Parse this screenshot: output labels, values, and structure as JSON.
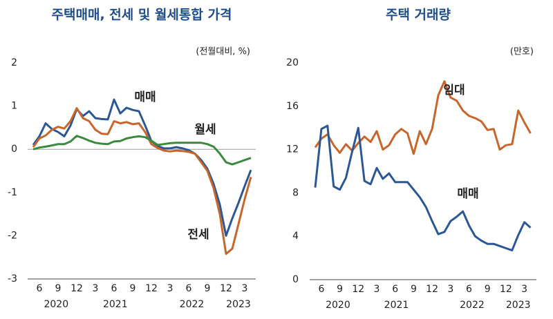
{
  "chart_data": [
    {
      "type": "line",
      "title": "주택매매, 전세 및 월세통합 가격",
      "y_label": "(전월대비, %)",
      "categories": [
        null,
        "6",
        null,
        null,
        "9",
        null,
        null,
        "12",
        null,
        null,
        "3",
        null,
        null,
        "6",
        null,
        null,
        "9",
        null,
        null,
        "12",
        null,
        null,
        "3",
        null,
        null,
        "6",
        null,
        null,
        "9",
        null,
        null,
        "12",
        null,
        null,
        "3",
        null
      ],
      "year_labels": [
        "2020",
        "2021",
        "2022",
        "2023"
      ],
      "ylim": [
        -3,
        2
      ],
      "yticks": [
        2,
        1,
        0,
        -1,
        -2,
        -3
      ],
      "zero_line": true,
      "series": [
        {
          "name": "매매",
          "color": "#2b5797",
          "values": [
            0.1,
            0.3,
            0.6,
            0.47,
            0.4,
            0.3,
            0.55,
            0.93,
            0.77,
            0.88,
            0.72,
            0.7,
            0.69,
            1.15,
            0.83,
            0.96,
            0.91,
            0.88,
            0.55,
            0.19,
            0.08,
            0.02,
            0.02,
            0.05,
            0.02,
            -0.02,
            -0.1,
            -0.25,
            -0.45,
            -0.8,
            -1.28,
            -2.0,
            -1.6,
            -1.24,
            -0.85,
            -0.48
          ]
        },
        {
          "name": "전세",
          "color": "#c8652a",
          "values": [
            0.05,
            0.25,
            0.32,
            0.45,
            0.52,
            0.48,
            0.65,
            0.95,
            0.72,
            0.65,
            0.45,
            0.36,
            0.35,
            0.65,
            0.6,
            0.63,
            0.58,
            0.6,
            0.4,
            0.12,
            0.03,
            -0.03,
            -0.05,
            -0.03,
            -0.04,
            -0.06,
            -0.1,
            -0.3,
            -0.5,
            -0.9,
            -1.5,
            -2.42,
            -2.3,
            -1.73,
            -1.15,
            -0.64
          ]
        },
        {
          "name": "월세",
          "color": "#3a8a3e",
          "values": [
            0.0,
            0.04,
            0.06,
            0.09,
            0.12,
            0.12,
            0.18,
            0.31,
            0.26,
            0.2,
            0.15,
            0.13,
            0.12,
            0.18,
            0.19,
            0.25,
            0.28,
            0.3,
            0.28,
            0.2,
            0.1,
            0.12,
            0.14,
            0.15,
            0.15,
            0.15,
            0.15,
            0.15,
            0.12,
            0.06,
            -0.1,
            -0.3,
            -0.35,
            -0.3,
            -0.25,
            -0.2
          ]
        }
      ]
    },
    {
      "type": "line",
      "title": "주택 거래량",
      "y_label": "(만호)",
      "categories": [
        null,
        "6",
        null,
        null,
        "9",
        null,
        null,
        "12",
        null,
        null,
        "3",
        null,
        null,
        "6",
        null,
        null,
        "9",
        null,
        null,
        "12",
        null,
        null,
        "3",
        null,
        null,
        "6",
        null,
        null,
        "9",
        null,
        null,
        "12",
        null,
        null,
        "3",
        null
      ],
      "year_labels": [
        "2020",
        "2021",
        "2022",
        "2023"
      ],
      "ylim": [
        0,
        20
      ],
      "yticks": [
        20,
        16,
        12,
        8,
        4,
        0
      ],
      "zero_line": false,
      "series": [
        {
          "name": "임대",
          "color": "#c8652a",
          "values": [
            12.2,
            13.0,
            13.4,
            12.4,
            11.7,
            12.5,
            11.9,
            12.6,
            13.2,
            12.7,
            13.7,
            12.0,
            12.4,
            13.4,
            13.9,
            13.5,
            11.6,
            13.7,
            12.5,
            13.9,
            17.0,
            18.3,
            16.8,
            16.5,
            15.6,
            15.1,
            14.9,
            14.6,
            13.8,
            13.9,
            12.0,
            12.4,
            12.5,
            15.6,
            14.5,
            13.5
          ]
        },
        {
          "name": "매매",
          "color": "#2b5797",
          "values": [
            8.5,
            13.9,
            14.2,
            8.6,
            8.3,
            9.4,
            11.8,
            14.0,
            9.1,
            8.8,
            10.3,
            9.3,
            9.8,
            9.0,
            9.0,
            9.0,
            8.3,
            7.6,
            6.7,
            5.4,
            4.2,
            4.4,
            5.4,
            5.8,
            6.3,
            5.0,
            4.0,
            3.6,
            3.3,
            3.3,
            3.1,
            2.9,
            2.7,
            4.1,
            5.3,
            4.8
          ]
        }
      ]
    }
  ]
}
